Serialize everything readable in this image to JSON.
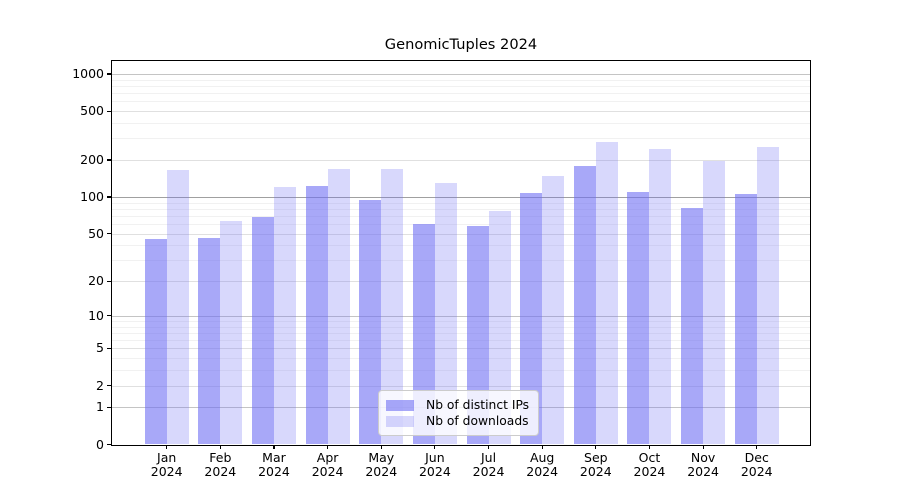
{
  "title": "GenomicTuples 2024",
  "chart_data": {
    "type": "bar",
    "title": "GenomicTuples 2024",
    "categories": [
      "Jan",
      "Feb",
      "Mar",
      "Apr",
      "May",
      "Jun",
      "Jul",
      "Aug",
      "Sep",
      "Oct",
      "Nov",
      "Dec"
    ],
    "category_year_line": "2024",
    "series": [
      {
        "name": "Nb of distinct IPs",
        "color": "rgba(110,110,243,0.60)",
        "values": [
          45,
          46,
          68,
          122,
          94,
          60,
          58,
          107,
          178,
          110,
          82,
          105
        ]
      },
      {
        "name": "Nb of downloads",
        "color": "rgba(110,110,243,0.27)",
        "values": [
          166,
          64,
          121,
          169,
          168,
          131,
          77,
          148,
          282,
          245,
          196,
          257
        ]
      }
    ],
    "yscale": "log1p",
    "ylim": [
      0,
      1270
    ],
    "y_ticks": [
      0,
      1,
      2,
      5,
      10,
      20,
      50,
      100,
      200,
      500,
      1000
    ],
    "y_minor_gridlines": [
      3,
      4,
      6,
      7,
      8,
      9,
      30,
      40,
      60,
      70,
      80,
      90,
      300,
      400,
      600,
      700,
      800,
      900
    ],
    "grid": true,
    "legend_position": "lower center",
    "colors": {
      "grid_minor": "#f1f1f1",
      "grid_major": "#e0e0e0",
      "grid_decade": "#c4c4c4",
      "grid_hundred": "#a0a0a0",
      "axis": "#000000"
    }
  }
}
